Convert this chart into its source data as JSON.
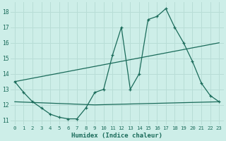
{
  "xlabel": "Humidex (Indice chaleur)",
  "xlim": [
    -0.5,
    23.5
  ],
  "ylim": [
    10.7,
    18.6
  ],
  "yticks": [
    11,
    12,
    13,
    14,
    15,
    16,
    17,
    18
  ],
  "xticks": [
    0,
    1,
    2,
    3,
    4,
    5,
    6,
    7,
    8,
    9,
    10,
    11,
    12,
    13,
    14,
    15,
    16,
    17,
    18,
    19,
    20,
    21,
    22,
    23
  ],
  "bg_color": "#cdeee8",
  "line_color": "#1a6b5a",
  "grid_color": "#b8ddd6",
  "line1_x": [
    0,
    1,
    2,
    3,
    4,
    5,
    6,
    7,
    8,
    9,
    10,
    11,
    12,
    13,
    14,
    15,
    16,
    17,
    18,
    19,
    20,
    21,
    22,
    23
  ],
  "line1_y": [
    13.5,
    12.8,
    12.2,
    11.8,
    11.4,
    11.2,
    11.1,
    11.1,
    11.8,
    12.8,
    13.0,
    15.2,
    17.0,
    13.0,
    14.0,
    17.5,
    17.7,
    18.2,
    17.0,
    16.0,
    14.8,
    13.4,
    12.6,
    12.2
  ],
  "line2_x": [
    0,
    23
  ],
  "line2_y": [
    13.5,
    16.0
  ],
  "line3_x": [
    0,
    9,
    23
  ],
  "line3_y": [
    12.2,
    12.0,
    12.2
  ]
}
